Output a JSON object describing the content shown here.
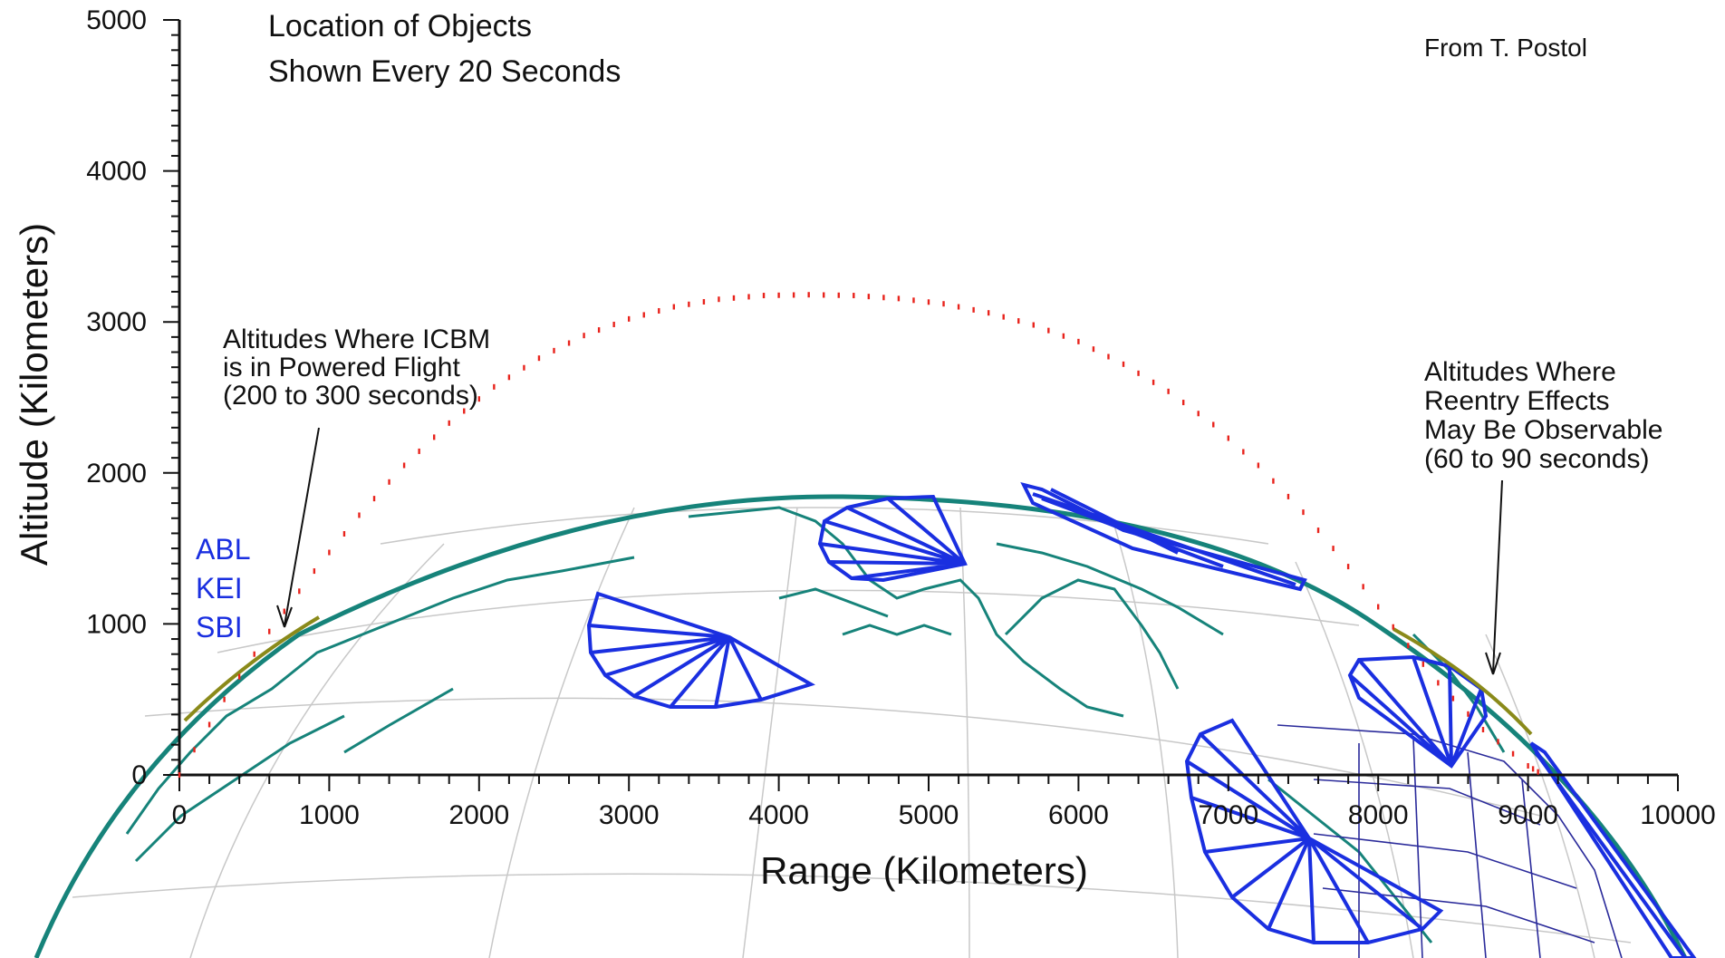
{
  "chart_data": {
    "type": "scatter",
    "title_lines": [
      "Location of Objects",
      "Shown Every 20 Seconds"
    ],
    "credit": "From T. Postol",
    "xlabel": "Range (Kilometers)",
    "ylabel": "Altitude (Kilometers)",
    "xlim": [
      0,
      10000
    ],
    "ylim": [
      0,
      5000
    ],
    "x_ticks": [
      0,
      1000,
      2000,
      3000,
      4000,
      5000,
      6000,
      7000,
      8000,
      9000,
      10000
    ],
    "y_ticks": [
      0,
      1000,
      2000,
      3000,
      4000,
      5000
    ],
    "series": [
      {
        "color": "#e8231c",
        "x": [
          0,
          300,
          600,
          900,
          1200,
          1500,
          1800,
          2100,
          2400,
          2700,
          3000,
          3300,
          3600,
          3900,
          4200,
          4500,
          4800,
          5100,
          5400,
          5700,
          6000,
          6300,
          6600,
          6900,
          7200,
          7500,
          7800,
          8100,
          8400,
          8700,
          9000,
          9100
        ],
        "y": [
          0,
          500,
          950,
          1350,
          1720,
          2050,
          2330,
          2570,
          2760,
          2910,
          3020,
          3100,
          3150,
          3175,
          3180,
          3175,
          3155,
          3120,
          3060,
          2980,
          2870,
          2720,
          2540,
          2320,
          2050,
          1740,
          1380,
          980,
          610,
          300,
          60,
          0
        ]
      }
    ],
    "labels": {
      "systems": [
        "ABL",
        "KEI",
        "SBI"
      ],
      "powered_flight": [
        "Altitudes Where ICBM",
        "is in Powered Flight",
        "(200 to 300 seconds)"
      ],
      "reentry": [
        "Altitudes Where",
        "Reentry Effects",
        "May Be Observable",
        "(60 to 90 seconds)"
      ]
    },
    "grid": false,
    "colors": {
      "trajectory": "#e8231c",
      "earth_outline": "#16837a",
      "coastlines": "#16837a",
      "graticule": "#c8c8c8",
      "sensor_fans": "#1a2fe0",
      "altitude_band": "#8a8a1a",
      "us_borders": "#2a2a9a"
    }
  }
}
